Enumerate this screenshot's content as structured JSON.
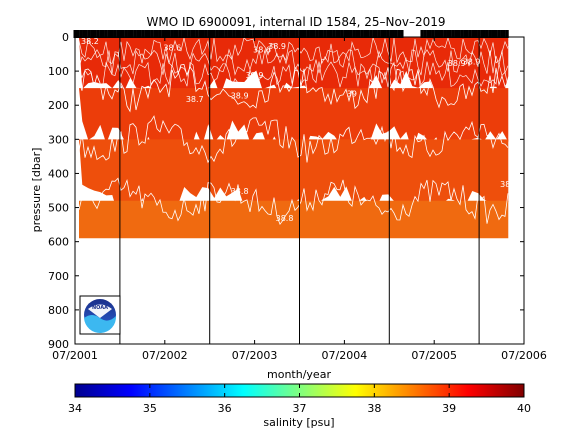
{
  "chart_data": [
    {
      "type": "heatmap",
      "title": "WMO ID 6900091, internal ID 1584, 25–Nov–2019",
      "xlabel": "month/year",
      "ylabel": "pressure [dbar]",
      "xticks": [
        "07/2001",
        "07/2002",
        "07/2003",
        "07/2004",
        "07/2005",
        "07/2006"
      ],
      "x_range": [
        "07/2001",
        "07/2006"
      ],
      "yticks": [
        0,
        100,
        200,
        300,
        400,
        500,
        600,
        700,
        800,
        900
      ],
      "ylim": [
        900,
        0
      ],
      "y_reversed": true,
      "data_max_pressure": 590,
      "year_dividers": [
        "01/2002",
        "01/2003",
        "01/2004",
        "01/2005",
        "01/2006"
      ],
      "contour_labels": [
        {
          "text": "38.2",
          "x": "09/2001",
          "pressure": 20
        },
        {
          "text": "38.6",
          "x": "08/2002",
          "pressure": 40
        },
        {
          "text": "38.7",
          "x": "11/2002",
          "pressure": 190
        },
        {
          "text": "38.6",
          "x": "08/2003",
          "pressure": 45
        },
        {
          "text": "38.9",
          "x": "10/2003",
          "pressure": 35
        },
        {
          "text": "39",
          "x": "08/2004",
          "pressure": 175
        },
        {
          "text": "38.9",
          "x": "05/2003",
          "pressure": 180
        },
        {
          "text": "38.8",
          "x": "05/2003",
          "pressure": 460
        },
        {
          "text": "38.9",
          "x": "07/2003",
          "pressure": 120
        },
        {
          "text": "38.8",
          "x": "11/2003",
          "pressure": 540
        },
        {
          "text": "38.9",
          "x": "10/2005",
          "pressure": 85
        },
        {
          "text": "38.9",
          "x": "12/2005",
          "pressure": 80
        },
        {
          "text": "38.8",
          "x": "05/2006",
          "pressure": 440
        },
        {
          "text": "38.6",
          "x": "06/2006",
          "pressure": 30
        }
      ],
      "layers": [
        {
          "pressure": [
            0,
            150
          ],
          "salinity": 39.0,
          "color": "#e82a08"
        },
        {
          "pressure": [
            150,
            300
          ],
          "salinity": 38.9,
          "color": "#ec3d0a"
        },
        {
          "pressure": [
            300,
            480
          ],
          "salinity": 38.8,
          "color": "#ee4f0c"
        },
        {
          "pressure": [
            480,
            590
          ],
          "salinity": 38.7,
          "color": "#f06a10"
        }
      ]
    },
    {
      "type": "colorbar",
      "label": "salinity [psu]",
      "range": [
        34,
        40
      ],
      "ticks": [
        34,
        35,
        36,
        37,
        38,
        39,
        40
      ],
      "colormap": "jet"
    }
  ],
  "logo": {
    "text": "NOAA"
  },
  "colors": {
    "background": "#ffffff",
    "contour": "#ffffff",
    "axis": "#000000"
  }
}
